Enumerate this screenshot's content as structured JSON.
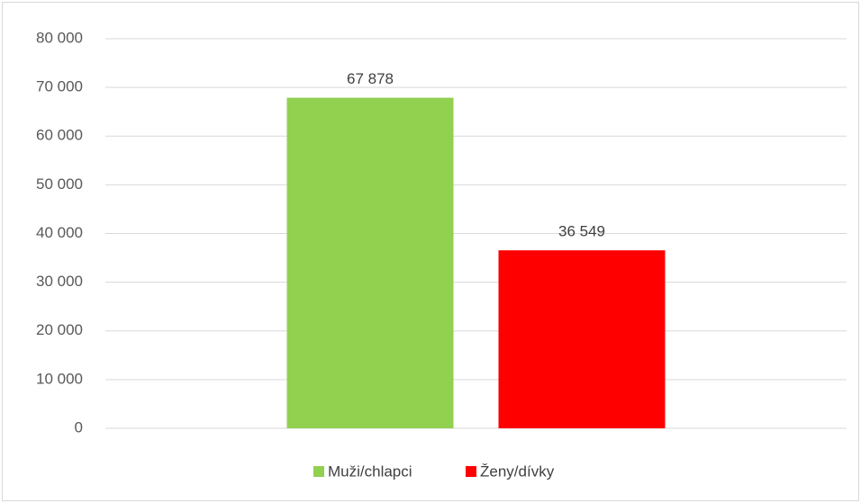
{
  "chart_data": {
    "type": "bar",
    "categories": [
      null
    ],
    "series": [
      {
        "name": "Muži/chlapci",
        "color": "#92d050",
        "values": [
          67878
        ],
        "value_labels": [
          "67 878"
        ]
      },
      {
        "name": "Ženy/dívky",
        "color": "#ff0000",
        "values": [
          36549
        ],
        "value_labels": [
          "36 549"
        ]
      }
    ],
    "ylim": [
      0,
      80000
    ],
    "yticks": [
      0,
      {
        "value": 10000,
        "label": "10 000"
      },
      {
        "value": 20000,
        "label": "20 000"
      },
      {
        "value": 30000,
        "label": "30 000"
      },
      {
        "value": 40000,
        "label": "40 000"
      },
      {
        "value": 50000,
        "label": "50 000"
      },
      {
        "value": 60000,
        "label": "60 000"
      },
      {
        "value": 70000,
        "label": "70 000"
      },
      {
        "value": 80000,
        "label": "80 000"
      }
    ],
    "grid": true,
    "legend": "bottom"
  }
}
